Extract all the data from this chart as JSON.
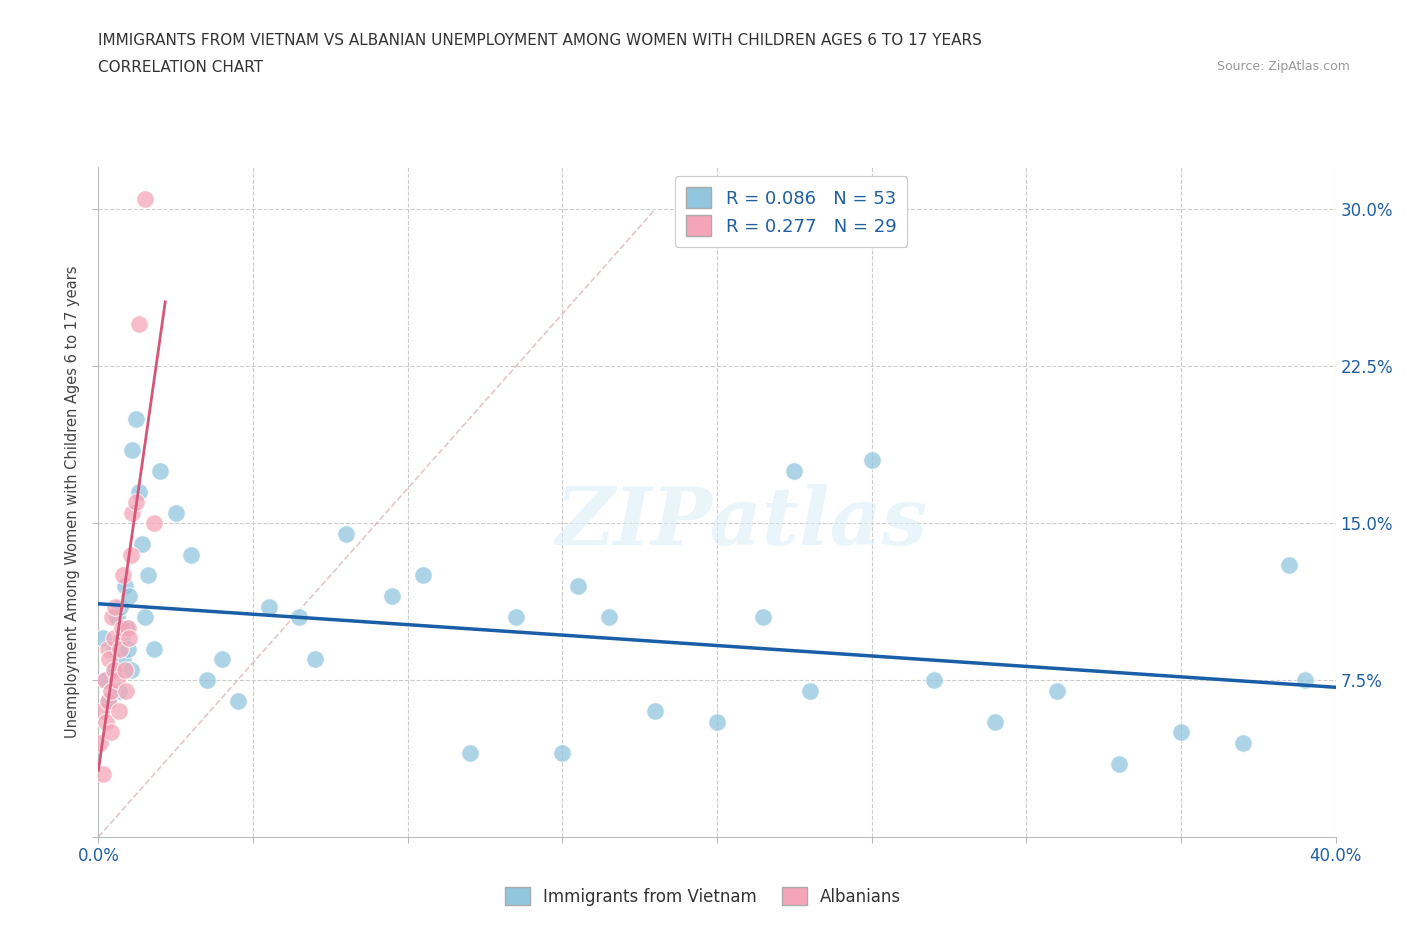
{
  "title_line1": "IMMIGRANTS FROM VIETNAM VS ALBANIAN UNEMPLOYMENT AMONG WOMEN WITH CHILDREN AGES 6 TO 17 YEARS",
  "title_line2": "CORRELATION CHART",
  "source": "Source: ZipAtlas.com",
  "ylabel": "Unemployment Among Women with Children Ages 6 to 17 years",
  "legend_label1": "Immigrants from Vietnam",
  "legend_label2": "Albanians",
  "R1": 0.086,
  "N1": 53,
  "R2": 0.277,
  "N2": 29,
  "watermark": "ZIPatlas",
  "background_color": "#ffffff",
  "color_blue": "#92c5de",
  "color_pink": "#f4a6b8",
  "line_blue": "#1a5ea8",
  "line_pink": "#d45678",
  "line_diag_color": "#d8b0b0",
  "xmin": 0.0,
  "xmax": 40.0,
  "ymin": 0.0,
  "ymax": 32.0,
  "ytick_vals": [
    7.5,
    15.0,
    22.5,
    30.0
  ],
  "xtick_vals": [
    0,
    5,
    10,
    15,
    20,
    25,
    30,
    35,
    40
  ],
  "vietnam_x": [
    0.15,
    0.25,
    0.35,
    0.5,
    0.55,
    0.6,
    0.65,
    0.7,
    0.75,
    0.8,
    0.85,
    0.9,
    0.95,
    1.0,
    1.05,
    1.1,
    1.2,
    1.3,
    1.4,
    1.5,
    1.6,
    1.8,
    2.0,
    2.5,
    3.0,
    3.5,
    4.0,
    4.5,
    5.5,
    6.5,
    7.0,
    8.0,
    9.5,
    10.5,
    12.0,
    13.5,
    15.0,
    16.5,
    18.0,
    20.0,
    21.5,
    23.0,
    25.0,
    27.0,
    29.0,
    31.0,
    33.0,
    35.0,
    37.0,
    39.0,
    15.5,
    22.5,
    38.5
  ],
  "vietnam_y": [
    9.5,
    7.5,
    6.5,
    9.0,
    8.0,
    10.5,
    7.0,
    11.0,
    9.5,
    8.5,
    12.0,
    10.0,
    9.0,
    11.5,
    8.0,
    18.5,
    20.0,
    16.5,
    14.0,
    10.5,
    12.5,
    9.0,
    17.5,
    15.5,
    13.5,
    7.5,
    8.5,
    6.5,
    11.0,
    10.5,
    8.5,
    14.5,
    11.5,
    12.5,
    4.0,
    10.5,
    4.0,
    10.5,
    6.0,
    5.5,
    10.5,
    7.0,
    18.0,
    7.5,
    5.5,
    7.0,
    3.5,
    5.0,
    4.5,
    7.5,
    12.0,
    17.5,
    13.0
  ],
  "albanian_x": [
    0.05,
    0.1,
    0.15,
    0.2,
    0.25,
    0.3,
    0.3,
    0.35,
    0.4,
    0.4,
    0.45,
    0.5,
    0.5,
    0.55,
    0.6,
    0.65,
    0.7,
    0.75,
    0.8,
    0.85,
    0.9,
    0.95,
    1.0,
    1.05,
    1.1,
    1.2,
    1.3,
    1.5,
    1.8
  ],
  "albanian_y": [
    4.5,
    6.0,
    3.0,
    7.5,
    5.5,
    9.0,
    6.5,
    8.5,
    7.0,
    5.0,
    10.5,
    8.0,
    9.5,
    11.0,
    7.5,
    6.0,
    9.0,
    10.0,
    12.5,
    8.0,
    7.0,
    10.0,
    9.5,
    13.5,
    15.5,
    16.0,
    24.5,
    30.5,
    15.0
  ],
  "diag_x0": 0.0,
  "diag_x1": 18.0,
  "diag_y0": 0.0,
  "diag_y1": 30.0
}
